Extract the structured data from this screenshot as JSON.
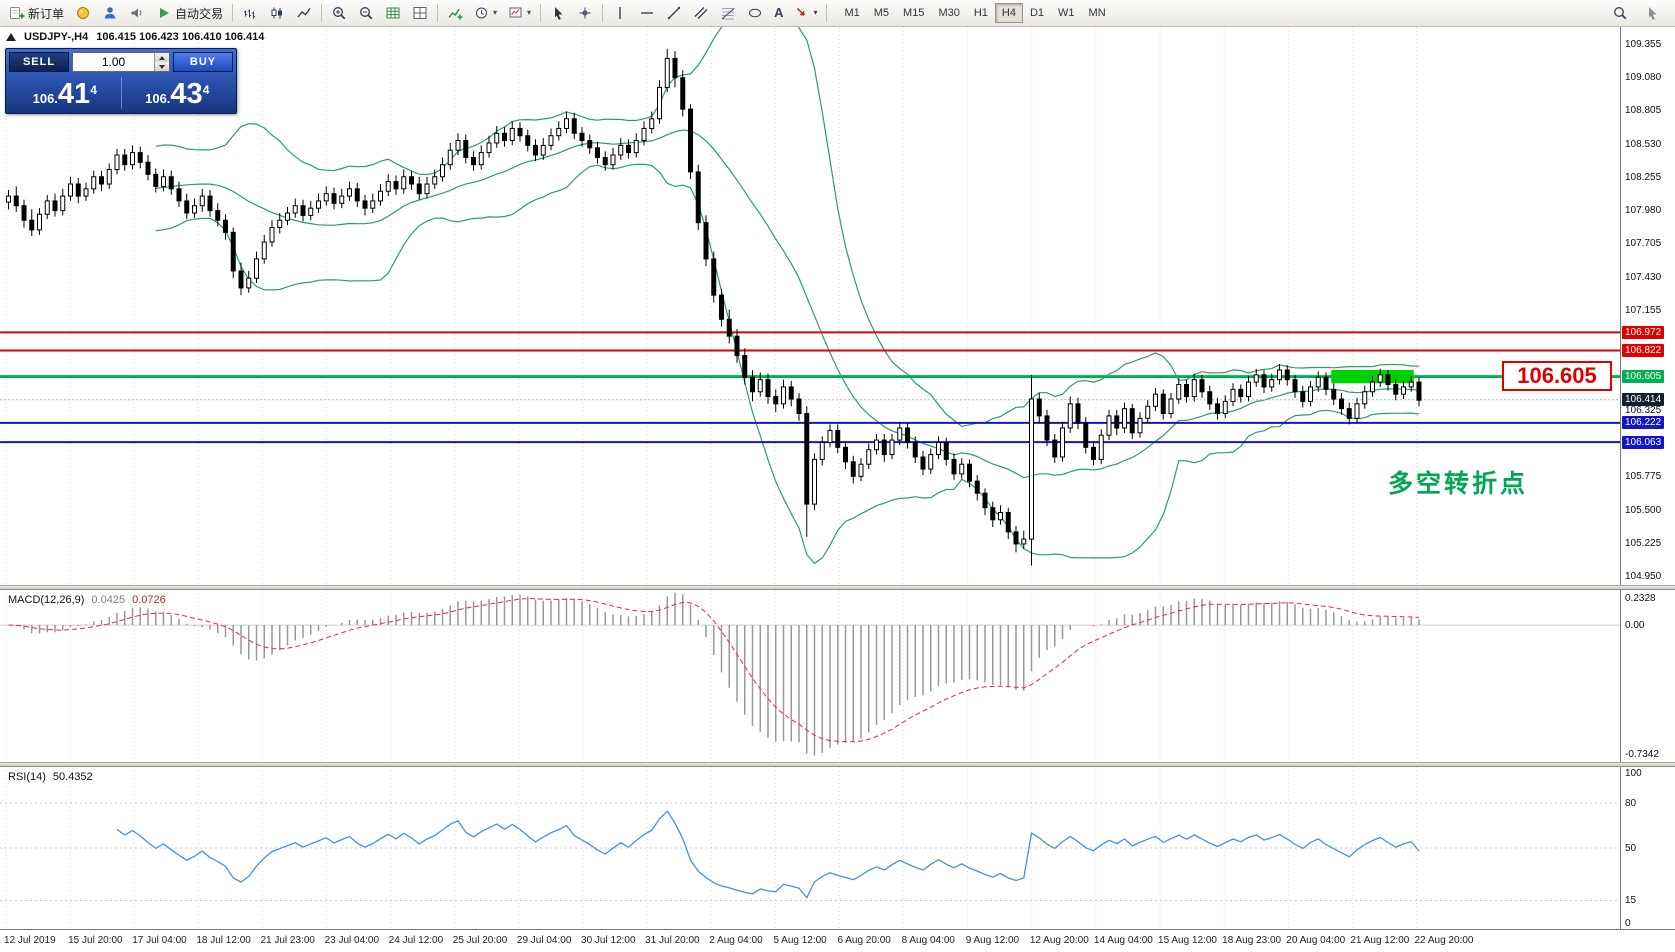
{
  "toolbar": {
    "new_order_label": "新订单",
    "auto_trading_label": "自动交易",
    "text_tool_label": "A",
    "timeframes": [
      "M1",
      "M5",
      "M15",
      "M30",
      "H1",
      "H4",
      "D1",
      "W1",
      "MN"
    ],
    "active_timeframe": "H4"
  },
  "icons": {
    "caret_down": "▾"
  },
  "one_click": {
    "sell_label": "SELL",
    "buy_label": "BUY",
    "volume": "1.00",
    "bid_prefix": "106.",
    "bid_main": "41",
    "bid_sup": "4",
    "ask_prefix": "106.",
    "ask_main": "43",
    "ask_sup": "4"
  },
  "chart_header": {
    "symbol": "USDJPY-,H4",
    "ohlc": "106.415 106.423 106.410 106.414"
  },
  "annotations": {
    "callout_price": "106.605",
    "turning_point_text": "多空转折点",
    "highlight_box": {
      "from_index": 171,
      "to_index": 181,
      "price_top": 106.66,
      "price_bottom": 106.55,
      "color": "#00d200"
    }
  },
  "price_axis": {
    "grid_labels": [
      "109.355",
      "109.080",
      "108.805",
      "108.530",
      "108.255",
      "107.980",
      "107.705",
      "107.430",
      "107.155",
      "106.325",
      "105.775",
      "105.500",
      "105.225",
      "104.950"
    ],
    "lines": [
      {
        "price": 106.972,
        "label": "106.972",
        "color": "#e00000",
        "width": 2
      },
      {
        "price": 106.822,
        "label": "106.822",
        "color": "#e00000",
        "width": 2
      },
      {
        "price": 106.605,
        "label": "106.605",
        "color": "#00b050",
        "width": 3
      },
      {
        "price": 106.222,
        "label": "106.222",
        "color": "#1414c8",
        "width": 2
      },
      {
        "price": 106.063,
        "label": "106.063",
        "color": "#1414c8",
        "width": 2
      }
    ],
    "bid": {
      "price": 106.414,
      "label": "106.414",
      "bg": "#11212e"
    }
  },
  "macd_panel": {
    "name": "MACD(12,26,9)",
    "value_main": "0.0425",
    "value_signal": "0.0726",
    "axis_max": "0.2328",
    "axis_zero": "0.00",
    "axis_min": "-0.7342"
  },
  "rsi_panel": {
    "name": "RSI(14)",
    "value": "50.4352",
    "axis_labels": [
      "100",
      "80",
      "50",
      "15",
      "0"
    ],
    "levels": [
      80,
      50,
      15
    ]
  },
  "time_axis": [
    "12 Jul 2019",
    "15 Jul 20:00",
    "17 Jul 04:00",
    "18 Jul 12:00",
    "21 Jul 23:00",
    "23 Jul 04:00",
    "24 Jul 12:00",
    "25 Jul 20:00",
    "29 Jul 04:00",
    "30 Jul 12:00",
    "31 Jul 20:00",
    "2 Aug 04:00",
    "5 Aug 12:00",
    "6 Aug 20:00",
    "8 Aug 04:00",
    "9 Aug 12:00",
    "12 Aug 20:00",
    "14 Aug 04:00",
    "15 Aug 12:00",
    "18 Aug 23:00",
    "20 Aug 04:00",
    "21 Aug 12:00",
    "22 Aug 20:00"
  ],
  "colors": {
    "bollinger": "#2f9e5f",
    "macd_hist": "#999999",
    "macd_signal": "#e03030",
    "rsi_line": "#4a90d9",
    "grid": "#dcdcdc",
    "up_candle": "#ffffff",
    "down_candle": "#000000"
  },
  "chart_data": {
    "type": "candlestick",
    "symbol": "USDJPY",
    "timeframe": "H4",
    "y_range": [
      104.88,
      109.5
    ],
    "bollinger": {
      "period": 20,
      "deviation": 2
    },
    "macd": {
      "fast": 12,
      "slow": 26,
      "signal": 9
    },
    "rsi": {
      "period": 14
    },
    "candles": [
      [
        108.05,
        108.15,
        107.99,
        108.1
      ],
      [
        108.1,
        108.18,
        107.97,
        108.02
      ],
      [
        108.02,
        108.07,
        107.84,
        107.9
      ],
      [
        107.9,
        107.99,
        107.77,
        107.82
      ],
      [
        107.82,
        108,
        107.78,
        107.95
      ],
      [
        107.95,
        108.11,
        107.91,
        108.06
      ],
      [
        108.06,
        108.12,
        107.93,
        107.98
      ],
      [
        107.98,
        108.16,
        107.94,
        108.1
      ],
      [
        108.1,
        108.26,
        108.06,
        108.2
      ],
      [
        108.2,
        108.25,
        108.04,
        108.1
      ],
      [
        108.1,
        108.21,
        108.06,
        108.16
      ],
      [
        108.16,
        108.31,
        108.12,
        108.26
      ],
      [
        108.26,
        108.31,
        108.14,
        108.2
      ],
      [
        108.2,
        108.37,
        108.16,
        108.32
      ],
      [
        108.32,
        108.49,
        108.28,
        108.44
      ],
      [
        108.44,
        108.49,
        108.31,
        108.36
      ],
      [
        108.36,
        108.52,
        108.32,
        108.46
      ],
      [
        108.46,
        108.51,
        108.33,
        108.38
      ],
      [
        108.38,
        108.44,
        108.23,
        108.28
      ],
      [
        108.28,
        108.33,
        108.13,
        108.18
      ],
      [
        108.18,
        108.32,
        108.14,
        108.26
      ],
      [
        108.26,
        108.31,
        108.11,
        108.16
      ],
      [
        108.16,
        108.22,
        108.01,
        108.06
      ],
      [
        108.06,
        108.12,
        107.91,
        107.96
      ],
      [
        107.96,
        108.08,
        107.92,
        108.02
      ],
      [
        108.02,
        108.16,
        107.97,
        108.1
      ],
      [
        108.1,
        108.15,
        107.93,
        107.98
      ],
      [
        107.98,
        108.04,
        107.85,
        107.9
      ],
      [
        107.9,
        107.95,
        107.74,
        107.8
      ],
      [
        107.8,
        107.84,
        107.42,
        107.48
      ],
      [
        107.48,
        107.55,
        107.28,
        107.34
      ],
      [
        107.34,
        107.48,
        107.3,
        107.42
      ],
      [
        107.42,
        107.64,
        107.38,
        107.58
      ],
      [
        107.58,
        107.78,
        107.54,
        107.72
      ],
      [
        107.72,
        107.9,
        107.68,
        107.84
      ],
      [
        107.84,
        107.96,
        107.79,
        107.9
      ],
      [
        107.9,
        108.01,
        107.86,
        107.96
      ],
      [
        107.96,
        108.08,
        107.92,
        108.02
      ],
      [
        108.02,
        108.07,
        107.89,
        107.94
      ],
      [
        107.94,
        108.06,
        107.9,
        108
      ],
      [
        108,
        108.12,
        107.96,
        108.06
      ],
      [
        108.06,
        108.18,
        108.02,
        108.12
      ],
      [
        108.12,
        108.17,
        107.99,
        108.04
      ],
      [
        108.04,
        108.16,
        108,
        108.1
      ],
      [
        108.1,
        108.22,
        108.06,
        108.16
      ],
      [
        108.16,
        108.21,
        108.01,
        108.06
      ],
      [
        108.06,
        108.11,
        107.94,
        108
      ],
      [
        108,
        108.12,
        107.96,
        108.06
      ],
      [
        108.06,
        108.2,
        108.02,
        108.14
      ],
      [
        108.14,
        108.28,
        108.1,
        108.22
      ],
      [
        108.22,
        108.27,
        108.11,
        108.16
      ],
      [
        108.16,
        108.32,
        108.12,
        108.26
      ],
      [
        108.26,
        108.31,
        108.15,
        108.2
      ],
      [
        108.2,
        108.26,
        108.07,
        108.12
      ],
      [
        108.12,
        108.26,
        108.08,
        108.2
      ],
      [
        108.2,
        108.32,
        108.16,
        108.26
      ],
      [
        108.26,
        108.42,
        108.22,
        108.36
      ],
      [
        108.36,
        108.54,
        108.32,
        108.48
      ],
      [
        108.48,
        108.62,
        108.44,
        108.56
      ],
      [
        108.56,
        108.61,
        108.37,
        108.42
      ],
      [
        108.42,
        108.47,
        108.31,
        108.36
      ],
      [
        108.36,
        108.52,
        108.32,
        108.46
      ],
      [
        108.46,
        108.6,
        108.42,
        108.54
      ],
      [
        108.54,
        108.68,
        108.5,
        108.62
      ],
      [
        108.62,
        108.67,
        108.51,
        108.56
      ],
      [
        108.56,
        108.72,
        108.52,
        108.66
      ],
      [
        108.66,
        108.71,
        108.55,
        108.6
      ],
      [
        108.6,
        108.65,
        108.47,
        108.52
      ],
      [
        108.52,
        108.57,
        108.39,
        108.44
      ],
      [
        108.44,
        108.58,
        108.4,
        108.52
      ],
      [
        108.52,
        108.66,
        108.48,
        108.6
      ],
      [
        108.6,
        108.72,
        108.56,
        108.66
      ],
      [
        108.66,
        108.8,
        108.62,
        108.74
      ],
      [
        108.74,
        108.79,
        108.57,
        108.62
      ],
      [
        108.62,
        108.67,
        108.51,
        108.56
      ],
      [
        108.56,
        108.61,
        108.45,
        108.5
      ],
      [
        108.5,
        108.55,
        108.37,
        108.42
      ],
      [
        108.42,
        108.47,
        108.31,
        108.36
      ],
      [
        108.36,
        108.5,
        108.32,
        108.44
      ],
      [
        108.44,
        108.58,
        108.4,
        108.52
      ],
      [
        108.52,
        108.57,
        108.41,
        108.46
      ],
      [
        108.46,
        108.62,
        108.42,
        108.56
      ],
      [
        108.56,
        108.72,
        108.52,
        108.66
      ],
      [
        108.66,
        108.8,
        108.62,
        108.74
      ],
      [
        108.74,
        109.06,
        108.7,
        109
      ],
      [
        109,
        109.32,
        108.96,
        109.24
      ],
      [
        109.24,
        109.3,
        109,
        109.08
      ],
      [
        109.08,
        109.14,
        108.76,
        108.82
      ],
      [
        108.82,
        108.86,
        108.24,
        108.3
      ],
      [
        108.3,
        108.36,
        107.82,
        107.88
      ],
      [
        107.88,
        107.94,
        107.52,
        107.58
      ],
      [
        107.58,
        107.64,
        107.22,
        107.28
      ],
      [
        107.28,
        107.33,
        107.02,
        107.08
      ],
      [
        107.08,
        107.16,
        106.88,
        106.94
      ],
      [
        106.94,
        107,
        106.72,
        106.78
      ],
      [
        106.78,
        106.84,
        106.54,
        106.6
      ],
      [
        106.6,
        106.66,
        106.4,
        106.48
      ],
      [
        106.48,
        106.64,
        106.44,
        106.58
      ],
      [
        106.58,
        106.63,
        106.38,
        106.44
      ],
      [
        106.44,
        106.5,
        106.31,
        106.38
      ],
      [
        106.38,
        106.58,
        106.34,
        106.52
      ],
      [
        106.52,
        106.57,
        106.36,
        106.42
      ],
      [
        106.42,
        106.47,
        106.24,
        106.3
      ],
      [
        106.3,
        106.36,
        105.28,
        105.55
      ],
      [
        105.55,
        105.97,
        105.5,
        105.92
      ],
      [
        105.92,
        106.11,
        105.87,
        106.06
      ],
      [
        106.06,
        106.21,
        106.02,
        106.16
      ],
      [
        106.16,
        106.21,
        105.97,
        106.02
      ],
      [
        106.02,
        106.07,
        105.84,
        105.9
      ],
      [
        105.9,
        105.95,
        105.72,
        105.78
      ],
      [
        105.78,
        105.93,
        105.74,
        105.88
      ],
      [
        105.88,
        106.05,
        105.84,
        106
      ],
      [
        106,
        106.13,
        105.96,
        106.08
      ],
      [
        106.08,
        106.13,
        105.9,
        105.96
      ],
      [
        105.96,
        106.13,
        105.92,
        106.08
      ],
      [
        106.08,
        106.23,
        106.04,
        106.18
      ],
      [
        106.18,
        106.22,
        106.01,
        106.06
      ],
      [
        106.06,
        106.11,
        105.89,
        105.94
      ],
      [
        105.94,
        105.99,
        105.79,
        105.84
      ],
      [
        105.84,
        106.01,
        105.8,
        105.96
      ],
      [
        105.96,
        106.11,
        105.92,
        106.06
      ],
      [
        106.06,
        106.1,
        105.87,
        105.92
      ],
      [
        105.92,
        105.97,
        105.75,
        105.8
      ],
      [
        105.8,
        105.93,
        105.76,
        105.88
      ],
      [
        105.88,
        105.92,
        105.69,
        105.74
      ],
      [
        105.74,
        105.79,
        105.58,
        105.64
      ],
      [
        105.64,
        105.68,
        105.46,
        105.52
      ],
      [
        105.52,
        105.57,
        105.36,
        105.42
      ],
      [
        105.42,
        105.54,
        105.38,
        105.48
      ],
      [
        105.48,
        105.52,
        105.26,
        105.32
      ],
      [
        105.32,
        105.37,
        105.15,
        105.22
      ],
      [
        105.22,
        105.33,
        105.18,
        105.26
      ],
      [
        105.26,
        106.62,
        105.04,
        106.42
      ],
      [
        106.42,
        106.47,
        106.22,
        106.28
      ],
      [
        106.28,
        106.33,
        106.03,
        106.08
      ],
      [
        106.08,
        106.13,
        105.89,
        105.94
      ],
      [
        105.94,
        106.23,
        105.9,
        106.18
      ],
      [
        106.18,
        106.44,
        106.14,
        106.38
      ],
      [
        106.38,
        106.43,
        106.17,
        106.22
      ],
      [
        106.22,
        106.27,
        105.97,
        106.02
      ],
      [
        106.02,
        106.07,
        105.87,
        105.92
      ],
      [
        105.92,
        106.17,
        105.88,
        106.12
      ],
      [
        106.12,
        106.33,
        106.08,
        106.28
      ],
      [
        106.28,
        106.33,
        106.12,
        106.18
      ],
      [
        106.18,
        106.39,
        106.14,
        106.34
      ],
      [
        106.34,
        106.38,
        106.09,
        106.14
      ],
      [
        106.14,
        106.31,
        106.1,
        106.26
      ],
      [
        106.26,
        106.41,
        106.22,
        106.36
      ],
      [
        106.36,
        106.51,
        106.32,
        106.46
      ],
      [
        106.46,
        106.5,
        106.25,
        106.3
      ],
      [
        106.3,
        106.47,
        106.26,
        106.42
      ],
      [
        106.42,
        106.59,
        106.38,
        106.54
      ],
      [
        106.54,
        106.58,
        106.39,
        106.44
      ],
      [
        106.44,
        106.63,
        106.4,
        106.58
      ],
      [
        106.58,
        106.62,
        106.43,
        106.48
      ],
      [
        106.48,
        106.53,
        106.33,
        106.38
      ],
      [
        106.38,
        106.43,
        106.25,
        106.3
      ],
      [
        106.3,
        106.45,
        106.26,
        106.4
      ],
      [
        106.4,
        106.55,
        106.36,
        106.5
      ],
      [
        106.5,
        106.54,
        106.39,
        106.44
      ],
      [
        106.44,
        106.61,
        106.4,
        106.56
      ],
      [
        106.56,
        106.67,
        106.52,
        106.62
      ],
      [
        106.62,
        106.66,
        106.47,
        106.52
      ],
      [
        106.52,
        106.63,
        106.48,
        106.58
      ],
      [
        106.58,
        106.71,
        106.54,
        106.66
      ],
      [
        106.66,
        106.7,
        106.53,
        106.58
      ],
      [
        106.58,
        106.62,
        106.43,
        106.48
      ],
      [
        106.48,
        106.53,
        106.35,
        106.4
      ],
      [
        106.4,
        106.57,
        106.36,
        106.52
      ],
      [
        106.52,
        106.65,
        106.48,
        106.6
      ],
      [
        106.6,
        106.64,
        106.45,
        106.5
      ],
      [
        106.5,
        106.55,
        106.37,
        106.42
      ],
      [
        106.42,
        106.47,
        106.29,
        106.34
      ],
      [
        106.34,
        106.39,
        106.21,
        106.26
      ],
      [
        106.26,
        106.43,
        106.22,
        106.38
      ],
      [
        106.38,
        106.53,
        106.34,
        106.48
      ],
      [
        106.48,
        106.61,
        106.44,
        106.56
      ],
      [
        106.56,
        106.67,
        106.52,
        106.62
      ],
      [
        106.62,
        106.66,
        106.49,
        106.54
      ],
      [
        106.54,
        106.59,
        106.41,
        106.46
      ],
      [
        106.46,
        106.57,
        106.42,
        106.52
      ],
      [
        106.52,
        106.61,
        106.48,
        106.56
      ],
      [
        106.56,
        106.6,
        106.36,
        106.41
      ]
    ]
  }
}
